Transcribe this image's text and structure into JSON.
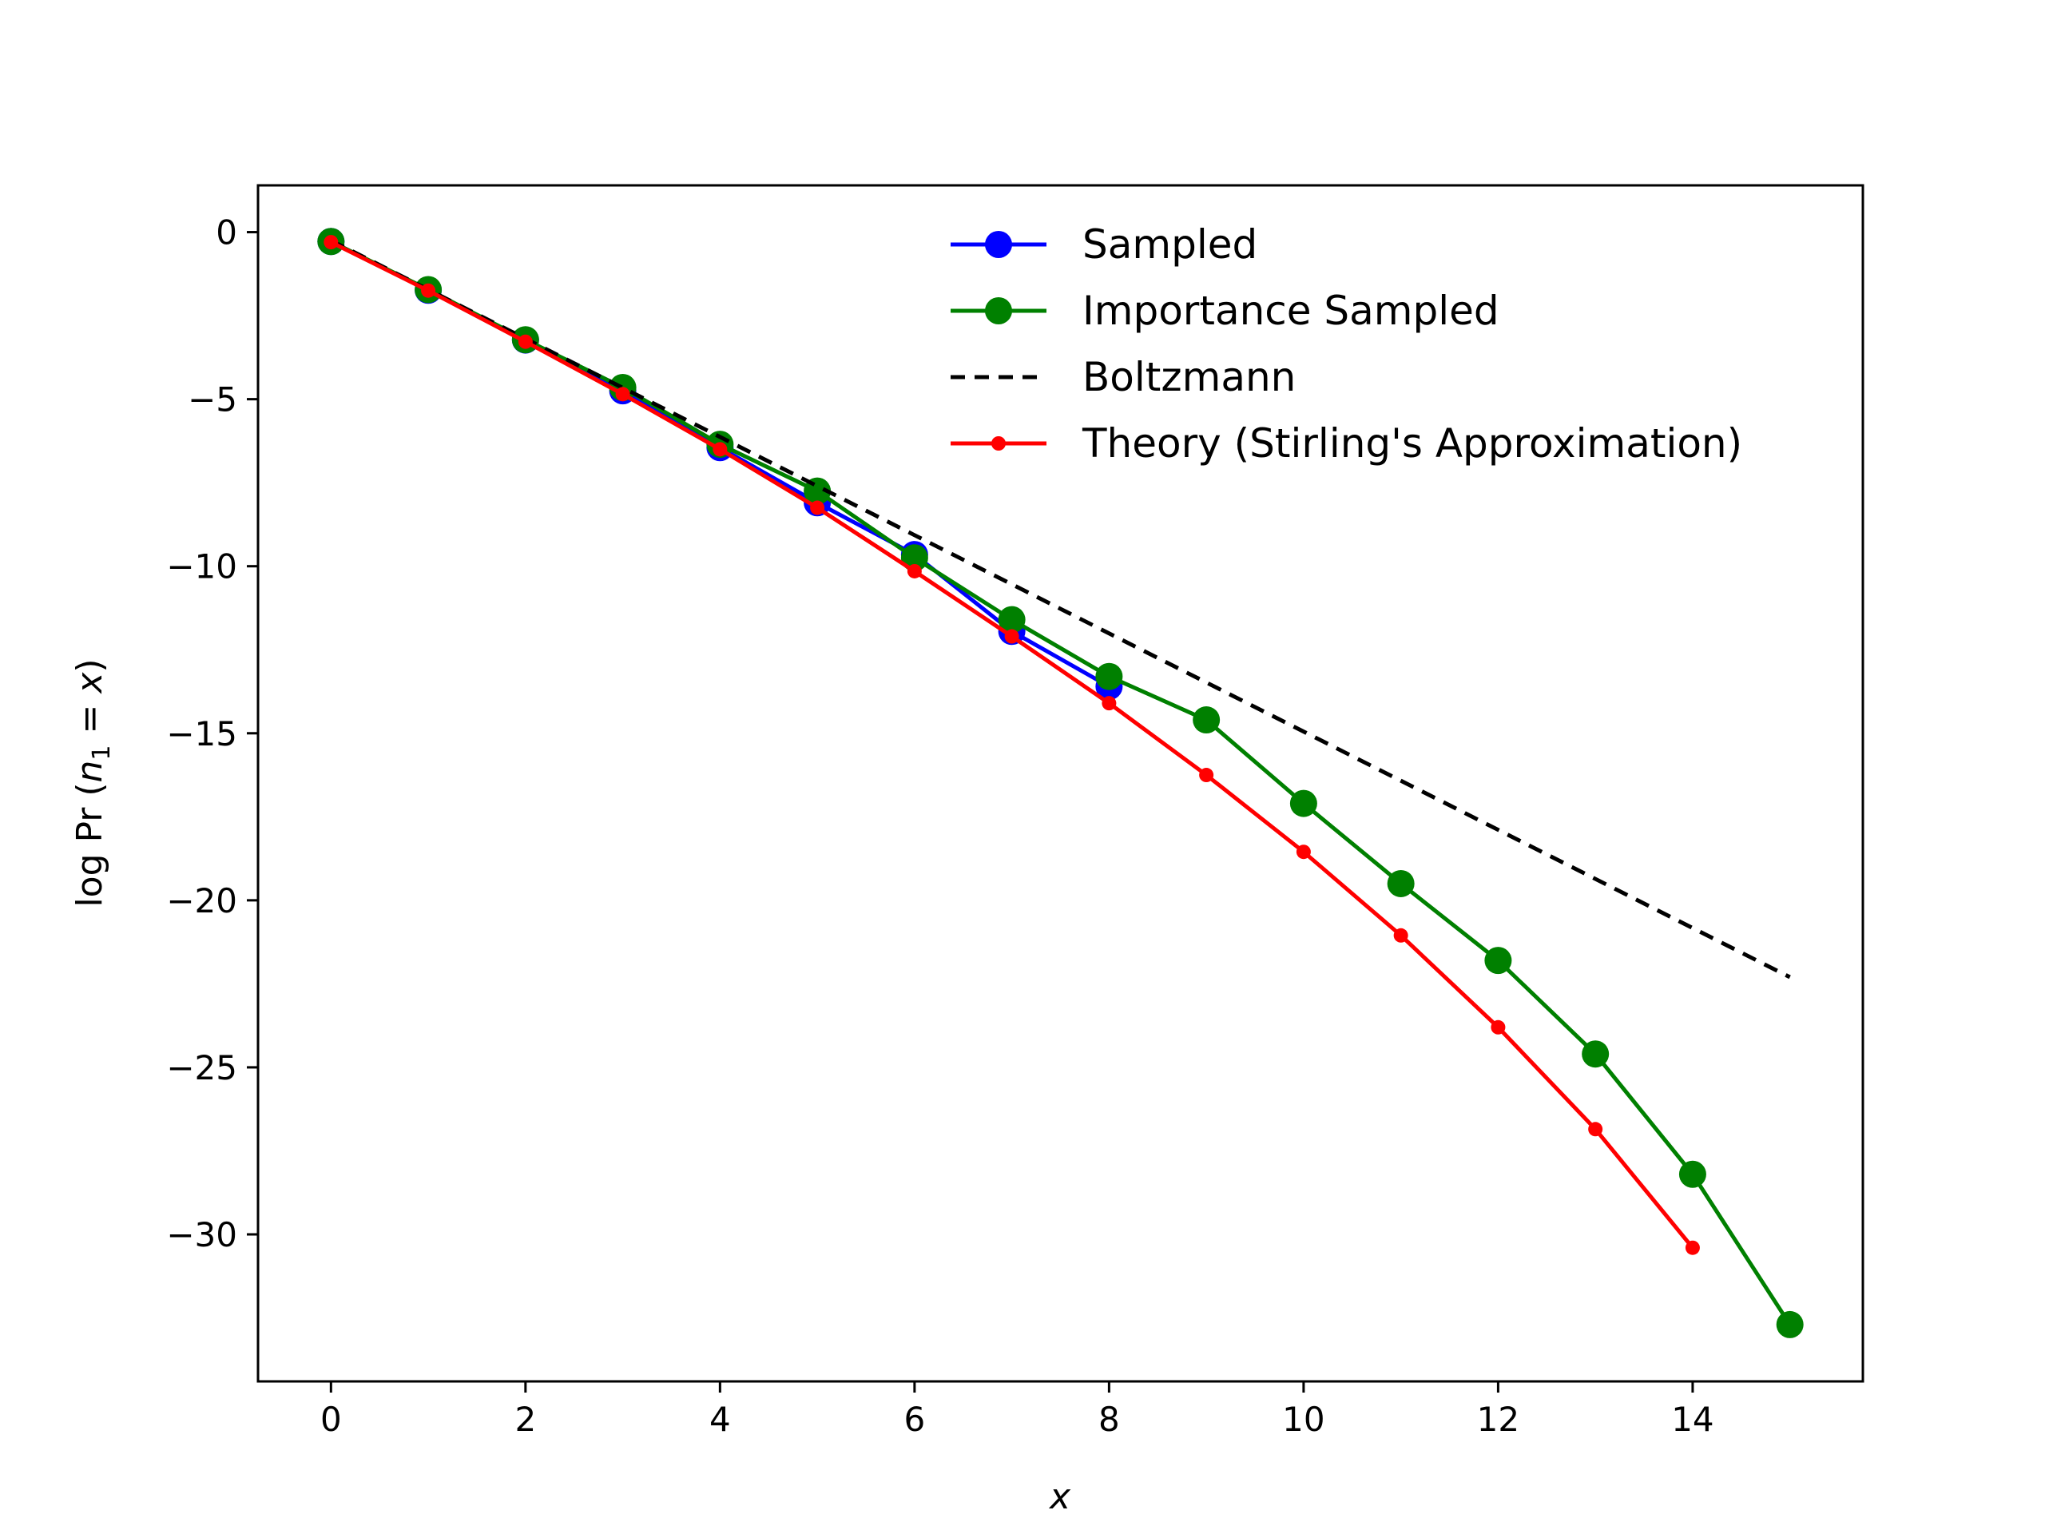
{
  "chart_data": {
    "type": "line",
    "xlabel": "x",
    "ylabel": "log Pr (n₁ = x)",
    "ylabel_parts": {
      "prefix": "log Pr (",
      "n": "n",
      "sub": "1",
      "rest": " = ",
      "x": "x",
      "close": ")"
    },
    "xlim": [
      -0.75,
      15.75
    ],
    "ylim": [
      -34.4,
      1.4
    ],
    "xticks": [
      0,
      2,
      4,
      6,
      8,
      10,
      12,
      14
    ],
    "yticks": [
      0,
      -5,
      -10,
      -15,
      -20,
      -25,
      -30
    ],
    "xtick_labels": [
      "0",
      "2",
      "4",
      "6",
      "8",
      "10",
      "12",
      "14"
    ],
    "ytick_labels": [
      "0",
      "−5",
      "−10",
      "−15",
      "−20",
      "−25",
      "−30"
    ],
    "legend_position": "upper right",
    "series": [
      {
        "name": "Sampled",
        "color": "#0000ff",
        "style": "solid",
        "marker": "large-circle",
        "x": [
          0,
          1,
          2,
          3,
          4,
          5,
          6,
          7,
          8
        ],
        "y": [
          -0.28,
          -1.74,
          -3.23,
          -4.75,
          -6.45,
          -8.1,
          -9.65,
          -11.95,
          -13.6
        ]
      },
      {
        "name": "Importance Sampled",
        "color": "#008000",
        "style": "solid",
        "marker": "large-circle",
        "x": [
          0,
          1,
          2,
          3,
          4,
          5,
          6,
          7,
          8,
          9,
          10,
          11,
          12,
          13,
          14,
          15
        ],
        "y": [
          -0.28,
          -1.72,
          -3.22,
          -4.65,
          -6.35,
          -7.75,
          -9.75,
          -11.6,
          -13.3,
          -14.6,
          -17.1,
          -19.5,
          -21.8,
          -24.6,
          -28.2,
          -32.7
        ]
      },
      {
        "name": "Boltzmann",
        "color": "#000000",
        "style": "dashed",
        "marker": "none",
        "x": [
          0,
          15
        ],
        "y": [
          -0.25,
          -22.3
        ]
      },
      {
        "name": "Theory (Stirling's Approximation)",
        "color": "#ff0000",
        "style": "solid",
        "marker": "small-circle",
        "x": [
          0,
          1,
          2,
          3,
          4,
          5,
          6,
          7,
          8,
          9,
          10,
          11,
          12,
          13,
          14
        ],
        "y": [
          -0.3,
          -1.75,
          -3.28,
          -4.85,
          -6.5,
          -8.25,
          -10.15,
          -12.1,
          -14.1,
          -16.25,
          -18.55,
          -21.05,
          -23.8,
          -26.85,
          -30.4
        ]
      }
    ]
  }
}
